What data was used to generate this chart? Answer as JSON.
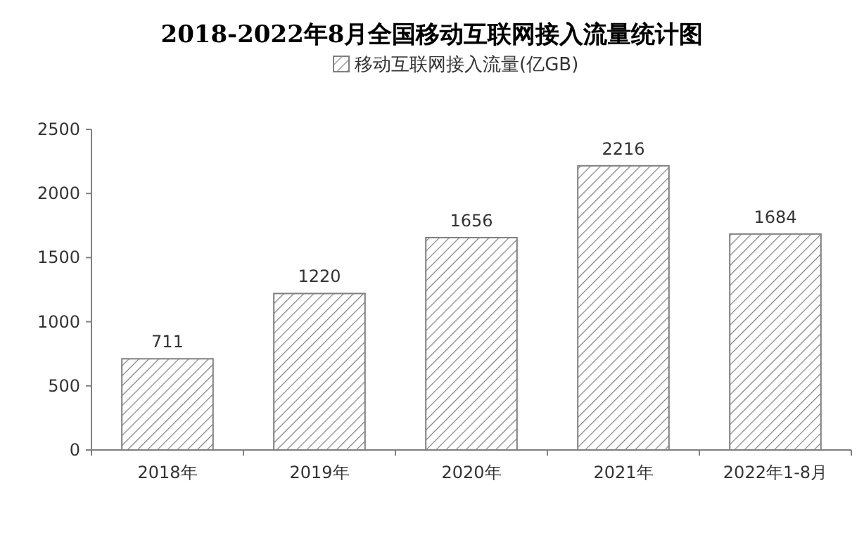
{
  "chart_data": {
    "type": "bar",
    "title": "2018-2022年8月全国移动互联网接入流量统计图",
    "categories": [
      "2018年",
      "2019年",
      "2020年",
      "2021年",
      "2022年1-8月"
    ],
    "series": [
      {
        "name": "移动互联网接入流量(亿GB)",
        "color": "#7f7f7f",
        "values": [
          711,
          1220,
          1656,
          2216,
          1684
        ]
      }
    ],
    "ylim": [
      0,
      2500
    ],
    "yticks": [
      0,
      500,
      1000,
      1500,
      2000,
      2500
    ],
    "data_labels": true,
    "legend": "top",
    "grid": false
  }
}
